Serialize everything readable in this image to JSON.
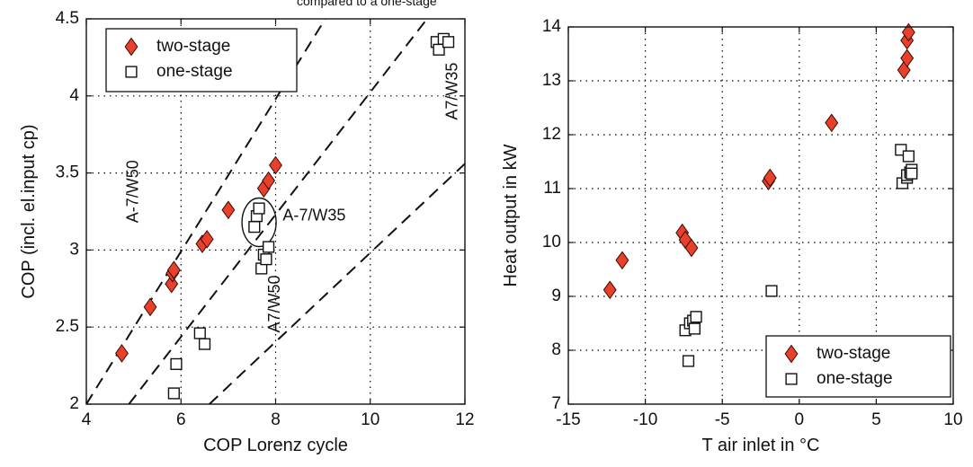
{
  "caption_fragment": "compared to a one-stage",
  "chart_data": [
    {
      "type": "scatter",
      "xlabel": "COP Lorenz cycle",
      "ylabel": "COP (incl. el.input cp)",
      "xlim": [
        4,
        12
      ],
      "ylim": [
        2,
        4.5
      ],
      "xticks": [
        "4",
        "6",
        "8",
        "10",
        "12"
      ],
      "yticks": [
        "2",
        "2.5",
        "3",
        "3.5",
        "4",
        "4.5"
      ],
      "grid": true,
      "legend_position": "top-left",
      "series": [
        {
          "name": "two-stage",
          "marker": "diamond",
          "color": "#e8402a",
          "points": [
            [
              4.75,
              2.33
            ],
            [
              5.35,
              2.63
            ],
            [
              5.8,
              2.78
            ],
            [
              5.82,
              2.85
            ],
            [
              5.85,
              2.87
            ],
            [
              6.45,
              3.04
            ],
            [
              6.55,
              3.07
            ],
            [
              7.0,
              3.26
            ],
            [
              7.75,
              3.4
            ],
            [
              7.85,
              3.45
            ],
            [
              8.0,
              3.55
            ]
          ]
        },
        {
          "name": "one-stage",
          "marker": "square",
          "color": "#111111",
          "points": [
            [
              5.85,
              2.07
            ],
            [
              5.9,
              2.26
            ],
            [
              6.4,
              2.46
            ],
            [
              6.5,
              2.39
            ],
            [
              7.55,
              3.15
            ],
            [
              7.6,
              3.22
            ],
            [
              7.65,
              3.27
            ],
            [
              7.7,
              2.88
            ],
            [
              7.75,
              2.97
            ],
            [
              7.8,
              2.94
            ],
            [
              7.85,
              3.02
            ],
            [
              11.4,
              4.35
            ],
            [
              11.45,
              4.3
            ],
            [
              11.55,
              4.37
            ],
            [
              11.65,
              4.35
            ]
          ]
        }
      ],
      "reference_lines": [
        {
          "label": "A-7/W50",
          "from": [
            4,
            2.0
          ],
          "to": [
            9.05,
            4.5
          ]
        },
        {
          "label": "A7/W50",
          "from": [
            4.9,
            2.0
          ],
          "to": [
            11.2,
            4.5
          ]
        },
        {
          "label": "A7/W35",
          "from": [
            6.6,
            2.0
          ],
          "to": [
            12,
            3.56
          ]
        }
      ],
      "annotations": [
        {
          "text": "A-7/W50",
          "x": 5.0,
          "y": 3.38,
          "rotation": "vertical"
        },
        {
          "text": "A-7/W35",
          "x": 8.15,
          "y": 3.22
        },
        {
          "text": "A7/W50",
          "x": 8.0,
          "y": 2.65,
          "rotation": "vertical"
        },
        {
          "text": "A7/W35",
          "x": 11.75,
          "y": 4.03,
          "rotation": "vertical"
        }
      ],
      "ellipse": {
        "center": [
          7.65,
          3.18
        ],
        "label": "A-7/W35"
      }
    },
    {
      "type": "scatter",
      "xlabel": "T air inlet in °C",
      "ylabel": "Heat output in kW",
      "xlim": [
        -15,
        10
      ],
      "ylim": [
        7,
        14
      ],
      "xticks": [
        "-15",
        "-10",
        "-5",
        "0",
        "5",
        "10"
      ],
      "yticks": [
        "7",
        "8",
        "9",
        "10",
        "11",
        "12",
        "13",
        "14"
      ],
      "grid": true,
      "legend_position": "bottom-right",
      "series": [
        {
          "name": "two-stage",
          "marker": "diamond",
          "color": "#e8402a",
          "points": [
            [
              -12.3,
              9.12
            ],
            [
              -11.5,
              9.67
            ],
            [
              -7.6,
              10.18
            ],
            [
              -7.4,
              10.05
            ],
            [
              -7.0,
              9.9
            ],
            [
              -2.0,
              11.14
            ],
            [
              -1.9,
              11.2
            ],
            [
              2.1,
              12.22
            ],
            [
              6.8,
              13.2
            ],
            [
              7.0,
              13.42
            ],
            [
              7.0,
              13.75
            ],
            [
              7.1,
              13.9
            ]
          ]
        },
        {
          "name": "one-stage",
          "marker": "square",
          "color": "#111111",
          "points": [
            [
              -7.4,
              8.37
            ],
            [
              -7.2,
              7.8
            ],
            [
              -7.1,
              8.5
            ],
            [
              -6.9,
              8.55
            ],
            [
              -6.8,
              8.4
            ],
            [
              -6.7,
              8.62
            ],
            [
              -1.8,
              9.1
            ],
            [
              6.6,
              11.72
            ],
            [
              6.7,
              11.1
            ],
            [
              7.0,
              11.2
            ],
            [
              7.0,
              11.25
            ],
            [
              7.1,
              11.6
            ],
            [
              7.2,
              11.3
            ],
            [
              7.3,
              11.35
            ],
            [
              7.3,
              11.28
            ]
          ]
        }
      ]
    }
  ]
}
